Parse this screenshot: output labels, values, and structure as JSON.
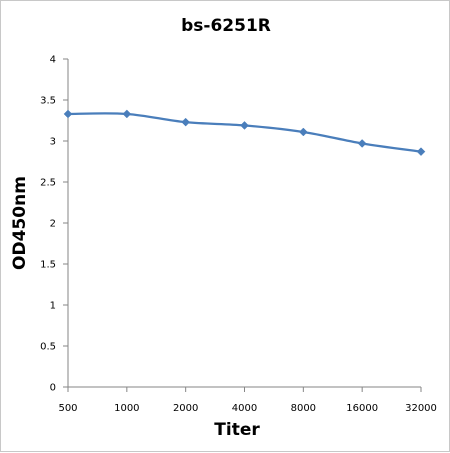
{
  "chart_data": {
    "type": "line",
    "title": "bs-6251R",
    "xlabel": "Titer",
    "ylabel": "OD450nm",
    "categories": [
      "500",
      "1000",
      "2000",
      "4000",
      "8000",
      "16000",
      "32000"
    ],
    "series": [
      {
        "values": [
          3.33,
          3.33,
          3.23,
          3.19,
          3.11,
          2.97,
          2.87
        ]
      }
    ],
    "ylim": [
      0,
      4
    ],
    "yticks": [
      "0",
      "0.5",
      "1",
      "1.5",
      "2",
      "2.5",
      "3",
      "3.5",
      "4"
    ],
    "grid": false,
    "legend": "none",
    "line_color": "#4a7ebb"
  }
}
